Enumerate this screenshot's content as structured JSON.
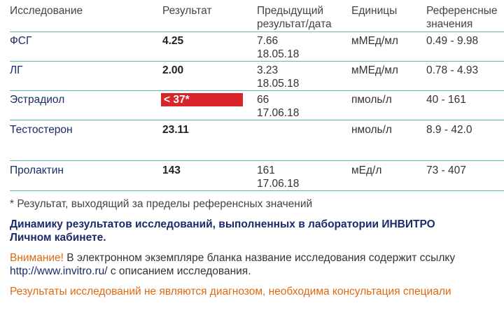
{
  "table": {
    "headers": [
      "Исследование",
      "Результат",
      "Предыдущий результат/дата",
      "Единицы",
      "Референсные значения"
    ],
    "rows": [
      {
        "name": "ФСГ",
        "result": "4.25",
        "previous": "7.66",
        "date": "18.05.18",
        "units": "мМЕд/мл",
        "reference": "0.49 - 9.98"
      },
      {
        "name": "ЛГ",
        "result": "2.00",
        "previous": "3.23",
        "date": "18.05.18",
        "units": "мМЕд/мл",
        "reference": "0.78 - 4.93"
      },
      {
        "name": "Эстрадиол",
        "result": "< 37*",
        "previous": "66",
        "date": "17.06.18",
        "units": "пмоль/л",
        "reference": "40 - 161"
      },
      {
        "name": "Тестостерон",
        "result": "23.11",
        "units": "нмоль/л",
        "reference": "8.9 - 42.0"
      },
      {
        "name": "Пролактин",
        "result": "143",
        "previous": "161",
        "date": "17.06.18",
        "units": "мЕд/л",
        "reference": "73 - 407"
      }
    ]
  },
  "notes": {
    "footnote": "* Результат, выходящий за пределы референсных значений",
    "dynamics": [
      "Динамику результатов исследований, выполненных в лаборатории ИНВИТРО",
      "Личном кабинете."
    ],
    "attention_label": "Внимание!",
    "attention_text": "В электронном экземпляре бланка название исследования содержит ссылку",
    "link": "http://www.invitro.ru/",
    "link_text": "с описанием исследования.",
    "disclaimer": "Результаты исследований не являются диагнозом, необходима консультация специали"
  }
}
